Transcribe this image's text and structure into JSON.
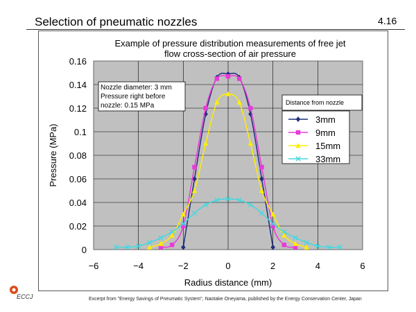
{
  "slide": {
    "title": "Selection of pneumatic nozzles",
    "number": "4.16",
    "logo_text": "ECCJ",
    "footer": "Excerpt from \"Energy Savings of Pneumatic System\", Naotake Oneyama, published by the Energy Conservation Center, Japan"
  },
  "chart_data": {
    "type": "line",
    "title_lines": [
      "Example of pressure distribution measurements of free jet",
      "flow cross-section of air pressure"
    ],
    "xlabel": "Radius distance (mm)",
    "ylabel": "Pressure (MPa)",
    "xlim": [
      -6,
      6
    ],
    "ylim": [
      0,
      0.16
    ],
    "xticks": [
      "−6",
      "−4",
      "−2",
      "0",
      "2",
      "4",
      "6"
    ],
    "yticks": [
      "0",
      "0.02",
      "0.04",
      "0.06",
      "0.08",
      "0.1",
      "0.12",
      "0.14",
      "0.16"
    ],
    "grid": true,
    "plot_background": "#c0c0c0",
    "annotation_lines": [
      "Nozzle diameter: 3 mm",
      "Pressure right before",
      "nozzle: 0.15 MPa"
    ],
    "legend_title": "Distance from nozzle",
    "legend_position": "right",
    "series": [
      {
        "name": "3mm",
        "color": "#1f2f7a",
        "marker": "diamond",
        "x": [
          -2,
          -1.5,
          -1,
          -0.5,
          0,
          0.5,
          1,
          1.5,
          2
        ],
        "y": [
          0.002,
          0.06,
          0.115,
          0.146,
          0.149,
          0.146,
          0.115,
          0.06,
          0.002
        ]
      },
      {
        "name": "9mm",
        "color": "#e83ad8",
        "marker": "square",
        "x": [
          -3,
          -2.5,
          -2,
          -1.5,
          -1,
          -0.5,
          0,
          0.5,
          1,
          1.5,
          2,
          2.5,
          3
        ],
        "y": [
          0.002,
          0.004,
          0.02,
          0.07,
          0.12,
          0.145,
          0.147,
          0.145,
          0.12,
          0.07,
          0.02,
          0.004,
          0.002
        ]
      },
      {
        "name": "15mm",
        "color": "#ffee00",
        "marker": "triangle",
        "x": [
          -3.5,
          -3,
          -2.5,
          -2,
          -1.5,
          -1,
          -0.5,
          0,
          0.5,
          1,
          1.5,
          2,
          2.5,
          3,
          3.5
        ],
        "y": [
          0.002,
          0.005,
          0.012,
          0.03,
          0.05,
          0.09,
          0.125,
          0.132,
          0.125,
          0.09,
          0.05,
          0.03,
          0.012,
          0.005,
          0.002
        ]
      },
      {
        "name": "33mm",
        "color": "#44d8e0",
        "marker": "x",
        "x": [
          -5,
          -4.5,
          -4,
          -3.5,
          -3,
          -2.5,
          -2,
          -1.5,
          -1,
          -0.5,
          0,
          0.5,
          1,
          1.5,
          2,
          2.5,
          3,
          3.5,
          4,
          4.5,
          5
        ],
        "y": [
          0.002,
          0.002,
          0.003,
          0.006,
          0.01,
          0.015,
          0.022,
          0.031,
          0.038,
          0.042,
          0.043,
          0.042,
          0.038,
          0.031,
          0.022,
          0.015,
          0.01,
          0.006,
          0.003,
          0.002,
          0.002
        ]
      }
    ]
  }
}
